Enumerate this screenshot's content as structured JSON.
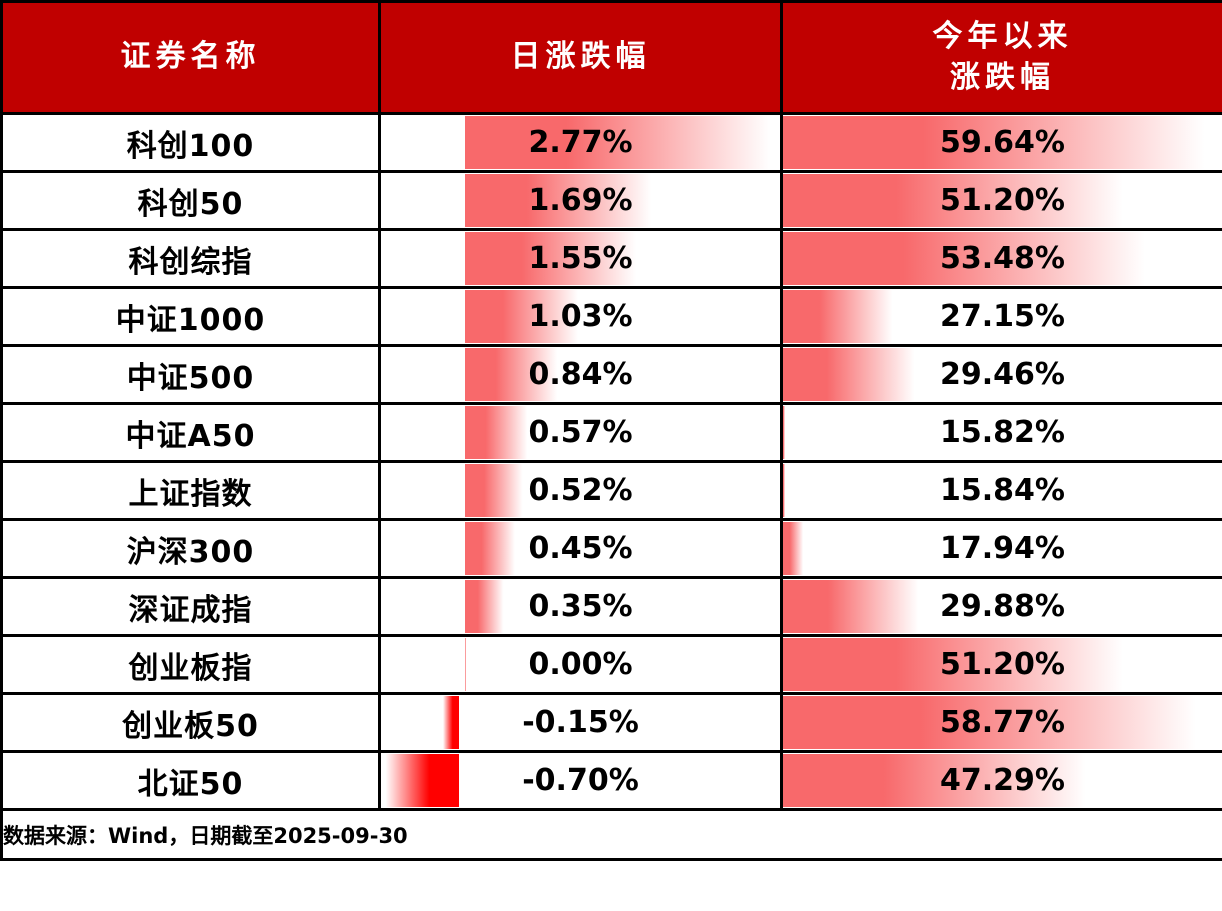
{
  "header": {
    "name_col": "证券名称",
    "daily_col": "日涨跌幅",
    "ytd_col": "今年以来\n涨跌幅"
  },
  "footer": {
    "source_note": "数据来源：Wind，日期截至2025-09-30"
  },
  "colors": {
    "header_bg": "#C00000",
    "header_text": "#FFFFFF",
    "positive_bar": "#F8696B",
    "negative_bar": "#FF0000",
    "border": "#000000",
    "value_text": "#000000"
  },
  "chart_data": {
    "type": "table",
    "title": "",
    "columns": [
      "证券名称",
      "日涨跌幅",
      "今年以来涨跌幅"
    ],
    "bar_style": "excel-gradient-databar",
    "daily_axis": {
      "min": -0.7,
      "max": 2.77,
      "axis_frac": 0.21
    },
    "ytd_axis": {
      "min": 15.82,
      "max": 59.64
    },
    "rows": [
      {
        "name": "科创100",
        "daily": 2.77,
        "daily_label": "2.77%",
        "ytd": 59.64,
        "ytd_label": "59.64%"
      },
      {
        "name": "科创50",
        "daily": 1.69,
        "daily_label": "1.69%",
        "ytd": 51.2,
        "ytd_label": "51.20%"
      },
      {
        "name": "科创综指",
        "daily": 1.55,
        "daily_label": "1.55%",
        "ytd": 53.48,
        "ytd_label": "53.48%"
      },
      {
        "name": "中证1000",
        "daily": 1.03,
        "daily_label": "1.03%",
        "ytd": 27.15,
        "ytd_label": "27.15%"
      },
      {
        "name": "中证500",
        "daily": 0.84,
        "daily_label": "0.84%",
        "ytd": 29.46,
        "ytd_label": "29.46%"
      },
      {
        "name": "中证A50",
        "daily": 0.57,
        "daily_label": "0.57%",
        "ytd": 15.82,
        "ytd_label": "15.82%"
      },
      {
        "name": "上证指数",
        "daily": 0.52,
        "daily_label": "0.52%",
        "ytd": 15.84,
        "ytd_label": "15.84%"
      },
      {
        "name": "沪深300",
        "daily": 0.45,
        "daily_label": "0.45%",
        "ytd": 17.94,
        "ytd_label": "17.94%"
      },
      {
        "name": "深证成指",
        "daily": 0.35,
        "daily_label": "0.35%",
        "ytd": 29.88,
        "ytd_label": "29.88%"
      },
      {
        "name": "创业板指",
        "daily": 0.0,
        "daily_label": "0.00%",
        "ytd": 51.2,
        "ytd_label": "51.20%"
      },
      {
        "name": "创业板50",
        "daily": -0.15,
        "daily_label": "-0.15%",
        "ytd": 58.77,
        "ytd_label": "58.77%"
      },
      {
        "name": "北证50",
        "daily": -0.7,
        "daily_label": "-0.70%",
        "ytd": 47.29,
        "ytd_label": "47.29%"
      }
    ]
  }
}
